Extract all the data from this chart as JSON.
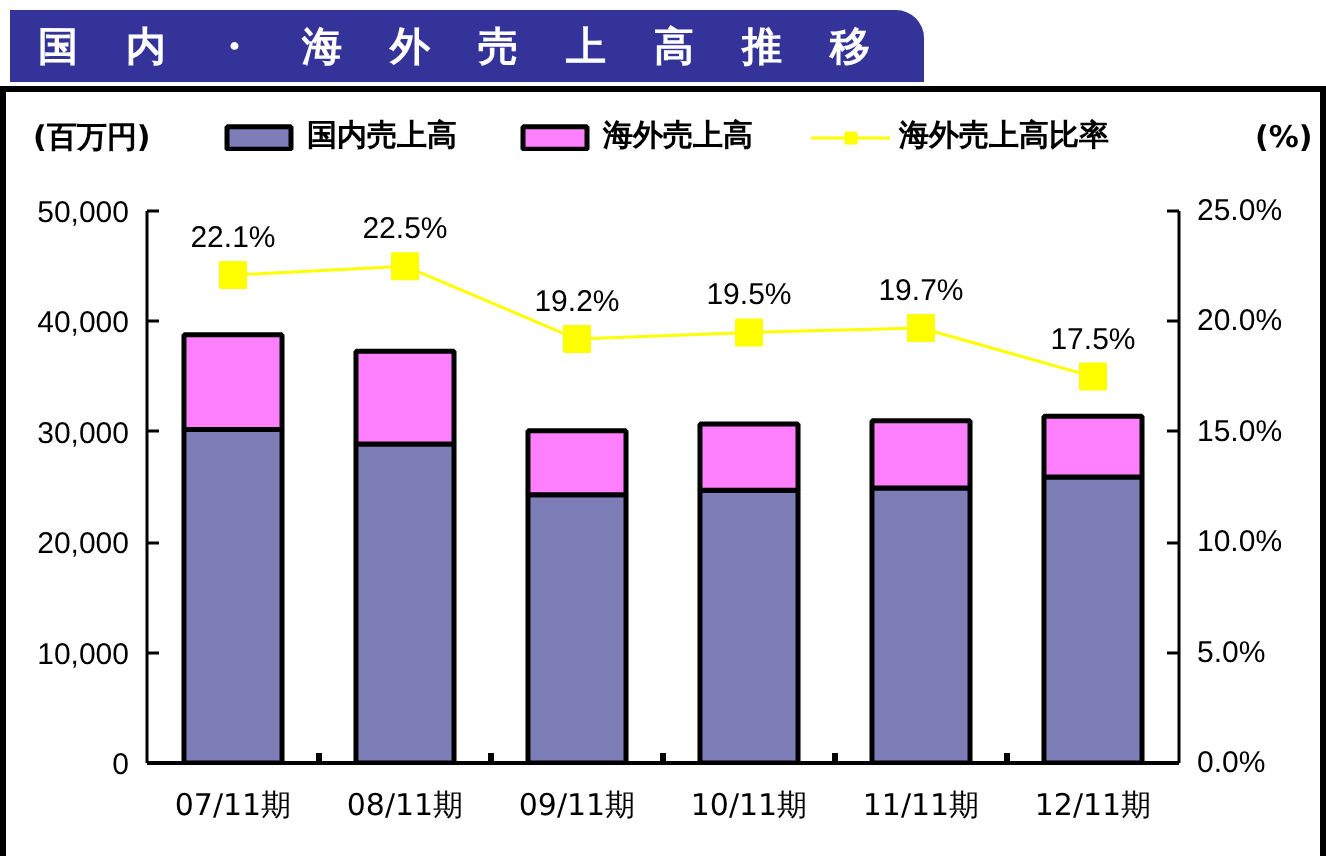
{
  "chart_data": {
    "type": "bar",
    "title": "国内・海外売上高推移",
    "ylabel": "(百万円)",
    "y2label": "(%)",
    "categories": [
      "07/11期",
      "08/11期",
      "09/11期",
      "10/11期",
      "11/11期",
      "12/11期"
    ],
    "stacked": true,
    "series": [
      {
        "name": "国内売上高",
        "color": "#7d7db8",
        "values": [
          30200,
          28900,
          24300,
          24700,
          24900,
          25900
        ]
      },
      {
        "name": "海外売上高",
        "color": "#ff80ff",
        "values": [
          8600,
          8400,
          5800,
          6000,
          6100,
          5500
        ]
      },
      {
        "name": "海外売上高比率",
        "type": "line",
        "axis": "y2",
        "color": "#ffff00",
        "marker": "square",
        "values": [
          22.1,
          22.5,
          19.2,
          19.5,
          19.7,
          17.5
        ],
        "value_labels": [
          "22.1%",
          "22.5%",
          "19.2%",
          "19.5%",
          "19.7%",
          "17.5%"
        ]
      }
    ],
    "ylim": [
      0,
      50000
    ],
    "yticks": [
      0,
      {
        "value": 10000,
        "label": "10,000"
      },
      {
        "value": 20000,
        "label": "20,000"
      },
      {
        "value": 30000,
        "label": "30,000"
      },
      {
        "value": 40000,
        "label": "40,000"
      },
      {
        "value": 50000,
        "label": "50,000"
      }
    ],
    "y2lim": [
      0,
      25
    ],
    "y2ticks": [
      {
        "value": 0,
        "label": "0.0%"
      },
      {
        "value": 5,
        "label": "5.0%"
      },
      {
        "value": 10,
        "label": "10.0%"
      },
      {
        "value": 15,
        "label": "15.0%"
      },
      {
        "value": 20,
        "label": "20.0%"
      },
      {
        "value": 25,
        "label": "25.0%"
      }
    ],
    "grid": false,
    "legend": "top"
  }
}
